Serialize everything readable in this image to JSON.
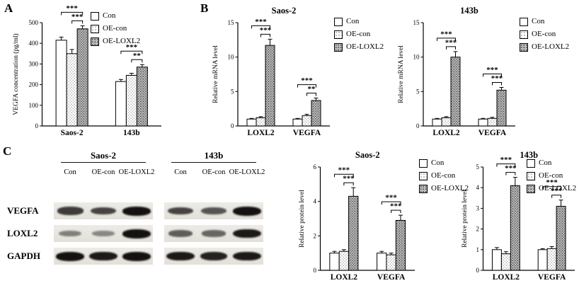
{
  "figure": {
    "panel_labels": {
      "a": "A",
      "b": "B",
      "c": "C"
    }
  },
  "legend": {
    "items": [
      {
        "label": "Con",
        "swatch": "con"
      },
      {
        "label": "OE-con",
        "swatch": "oecon"
      },
      {
        "label": "OE-LOXL2",
        "swatch": "oeloxl2"
      }
    ]
  },
  "colors": {
    "con_fill": "#ffffff",
    "oe_con_fill": "#f4f4f4",
    "oe_loxl2_fill": "#bdbdbd",
    "axis": "#000000"
  },
  "chart_data": [
    {
      "id": "vegfa-elisa",
      "type": "bar",
      "title": "",
      "ylabel": "VEGFA concentration (pg/ml)",
      "ylim": [
        0,
        500
      ],
      "yticks": [
        0,
        100,
        200,
        300,
        400,
        500
      ],
      "categories": [
        "Saos-2",
        "143b"
      ],
      "series": [
        {
          "name": "Con",
          "values": [
            415,
            215
          ],
          "errors": [
            15,
            10
          ]
        },
        {
          "name": "OE-con",
          "values": [
            350,
            245
          ],
          "errors": [
            20,
            10
          ]
        },
        {
          "name": "OE-LOXL2",
          "values": [
            470,
            285
          ],
          "errors": [
            15,
            12
          ]
        }
      ],
      "significance": [
        {
          "group": 0,
          "from": 0,
          "to": 2,
          "label": "***"
        },
        {
          "group": 0,
          "from": 1,
          "to": 2,
          "label": "***"
        },
        {
          "group": 1,
          "from": 0,
          "to": 2,
          "label": "***"
        },
        {
          "group": 1,
          "from": 1,
          "to": 2,
          "label": "**"
        }
      ]
    },
    {
      "id": "mrna-saos2",
      "type": "bar",
      "title": "Saos-2",
      "ylabel": "Relative mRNA level",
      "ylim": [
        0,
        15
      ],
      "yticks": [
        0,
        5,
        10,
        15
      ],
      "categories": [
        "LOXL2",
        "VEGFA"
      ],
      "series": [
        {
          "name": "Con",
          "values": [
            1,
            1
          ],
          "errors": [
            0.1,
            0.1
          ]
        },
        {
          "name": "OE-con",
          "values": [
            1.2,
            1.5
          ],
          "errors": [
            0.15,
            0.2
          ]
        },
        {
          "name": "OE-LOXL2",
          "values": [
            11.7,
            3.7
          ],
          "errors": [
            0.9,
            0.35
          ]
        }
      ],
      "significance": [
        {
          "group": 0,
          "from": 0,
          "to": 2,
          "label": "***"
        },
        {
          "group": 0,
          "from": 1,
          "to": 2,
          "label": "***"
        },
        {
          "group": 1,
          "from": 0,
          "to": 2,
          "label": "***"
        },
        {
          "group": 1,
          "from": 1,
          "to": 2,
          "label": "**"
        }
      ]
    },
    {
      "id": "mrna-143b",
      "type": "bar",
      "title": "143b",
      "ylabel": "Relative mRNA level",
      "ylim": [
        0,
        15
      ],
      "yticks": [
        0,
        5,
        10,
        15
      ],
      "categories": [
        "LOXL2",
        "VEGFA"
      ],
      "series": [
        {
          "name": "Con",
          "values": [
            1,
            1
          ],
          "errors": [
            0.1,
            0.1
          ]
        },
        {
          "name": "OE-con",
          "values": [
            1.2,
            1.1
          ],
          "errors": [
            0.15,
            0.15
          ]
        },
        {
          "name": "OE-LOXL2",
          "values": [
            10,
            5.2
          ],
          "errors": [
            0.8,
            0.4
          ]
        }
      ],
      "significance": [
        {
          "group": 0,
          "from": 0,
          "to": 2,
          "label": "***"
        },
        {
          "group": 0,
          "from": 1,
          "to": 2,
          "label": "***"
        },
        {
          "group": 1,
          "from": 0,
          "to": 2,
          "label": "***"
        },
        {
          "group": 1,
          "from": 1,
          "to": 2,
          "label": "***"
        }
      ]
    },
    {
      "id": "protein-saos2",
      "type": "bar",
      "title": "Saos-2",
      "ylabel": "Relative protein level",
      "ylim": [
        0,
        6
      ],
      "yticks": [
        0,
        2,
        4,
        6
      ],
      "categories": [
        "LOXL2",
        "VEGFA"
      ],
      "series": [
        {
          "name": "Con",
          "values": [
            1,
            1
          ],
          "errors": [
            0.1,
            0.1
          ]
        },
        {
          "name": "OE-con",
          "values": [
            1.1,
            0.9
          ],
          "errors": [
            0.1,
            0.1
          ]
        },
        {
          "name": "OE-LOXL2",
          "values": [
            4.3,
            2.9
          ],
          "errors": [
            0.5,
            0.3
          ]
        }
      ],
      "significance": [
        {
          "group": 0,
          "from": 0,
          "to": 2,
          "label": "***"
        },
        {
          "group": 0,
          "from": 1,
          "to": 2,
          "label": "***"
        },
        {
          "group": 1,
          "from": 0,
          "to": 2,
          "label": "***"
        },
        {
          "group": 1,
          "from": 1,
          "to": 2,
          "label": "***"
        }
      ]
    },
    {
      "id": "protein-143b",
      "type": "bar",
      "title": "143b",
      "ylabel": "Relative protein level",
      "ylim": [
        0,
        5
      ],
      "yticks": [
        0,
        1,
        2,
        3,
        4,
        5
      ],
      "categories": [
        "LOXL2",
        "VEGFA"
      ],
      "series": [
        {
          "name": "Con",
          "values": [
            1,
            1
          ],
          "errors": [
            0.1,
            0.05
          ]
        },
        {
          "name": "OE-con",
          "values": [
            0.8,
            1.05
          ],
          "errors": [
            0.1,
            0.1
          ]
        },
        {
          "name": "OE-LOXL2",
          "values": [
            4.1,
            3.1
          ],
          "errors": [
            0.4,
            0.3
          ]
        }
      ],
      "significance": [
        {
          "group": 0,
          "from": 0,
          "to": 2,
          "label": "***"
        },
        {
          "group": 0,
          "from": 1,
          "to": 2,
          "label": "***"
        },
        {
          "group": 1,
          "from": 0,
          "to": 2,
          "label": "***"
        },
        {
          "group": 1,
          "from": 1,
          "to": 2,
          "label": "***"
        }
      ]
    }
  ],
  "western_blot": {
    "cell_lines": [
      "Saos-2",
      "143b"
    ],
    "lane_labels": [
      "Con",
      "OE-con",
      "OE-LOXL2"
    ],
    "rows": [
      {
        "protein": "VEGFA",
        "bands": [
          [
            0.75,
            0.7,
            1.0
          ],
          [
            0.7,
            0.6,
            1.0
          ]
        ]
      },
      {
        "protein": "LOXL2",
        "bands": [
          [
            0.35,
            0.3,
            1.0
          ],
          [
            0.55,
            0.5,
            0.95
          ]
        ]
      },
      {
        "protein": "GAPDH",
        "bands": [
          [
            1.0,
            0.95,
            1.0
          ],
          [
            0.95,
            0.9,
            0.95
          ]
        ]
      }
    ]
  }
}
